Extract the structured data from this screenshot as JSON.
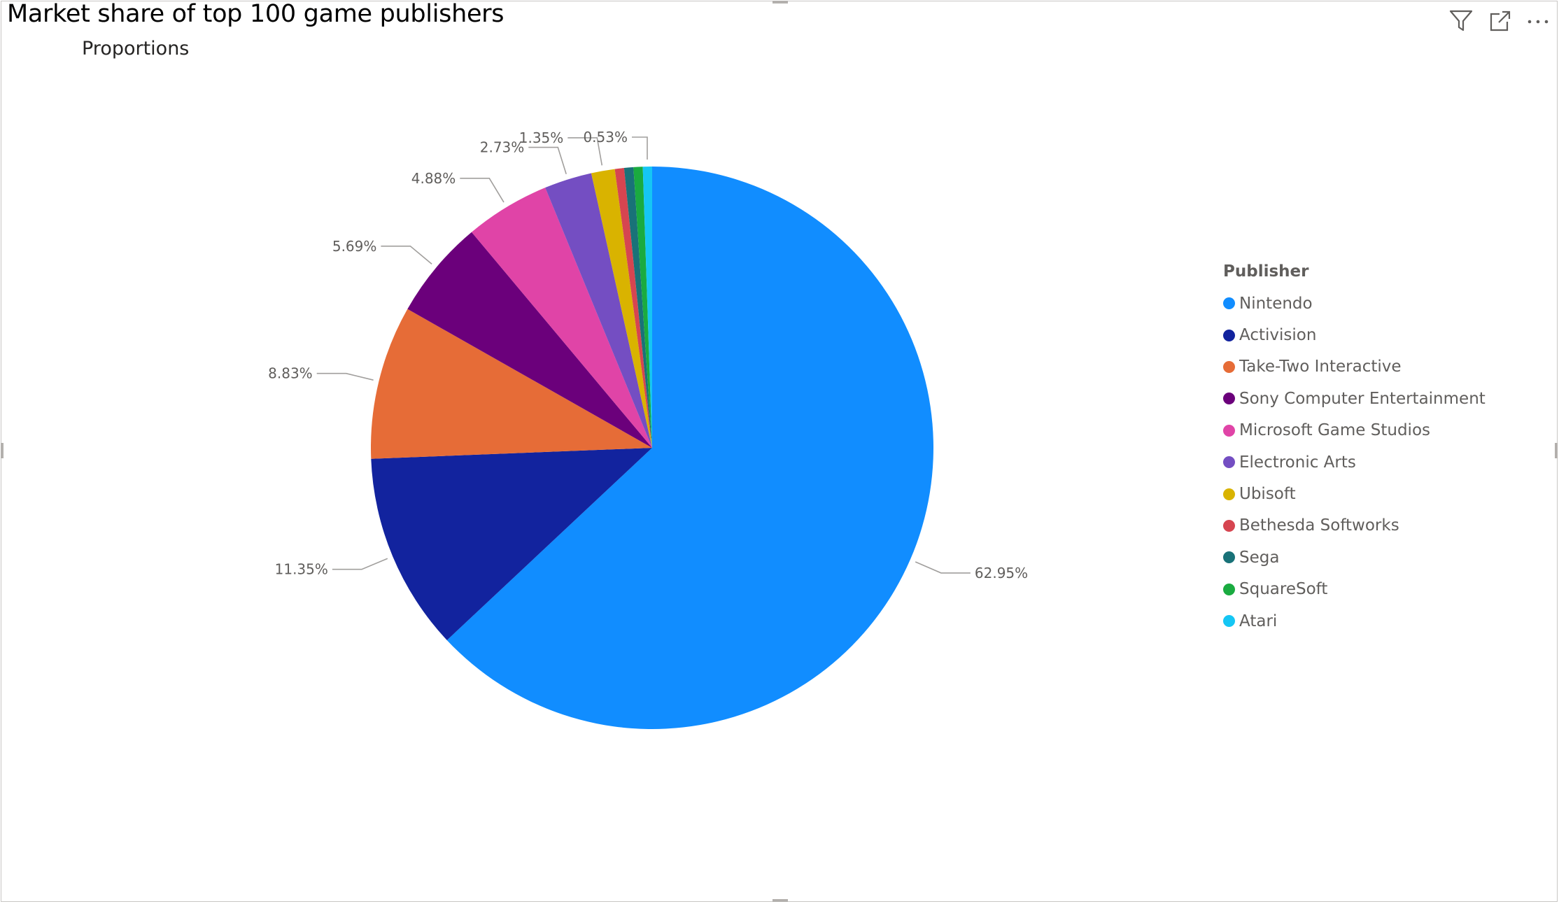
{
  "visual": {
    "title": "Market share of top 100 game publishers",
    "subtitle": "Proportions"
  },
  "toolbar": {
    "filter_icon": "filter-icon",
    "focus_icon": "focus-mode-icon",
    "more_icon": "more-options-icon"
  },
  "chart_data": {
    "type": "pie",
    "legend_title": "Publisher",
    "legend_position": "right",
    "categories": [
      "Nintendo",
      "Activision",
      "Take-Two Interactive",
      "Sony Computer Entertainment",
      "Microsoft Game Studios",
      "Electronic Arts",
      "Ubisoft",
      "Bethesda Softworks",
      "Sega",
      "SquareSoft",
      "Atari"
    ],
    "values": [
      62.95,
      11.35,
      8.83,
      5.69,
      4.88,
      2.73,
      1.35,
      0.53,
      0.53,
      0.53,
      0.53
    ],
    "data_labels": [
      "62.95%",
      "11.35%",
      "8.83%",
      "5.69%",
      "4.88%",
      "2.73%",
      "1.35%",
      "",
      "",
      "",
      "0.53%"
    ],
    "colors": [
      "#118DFF",
      "#12239E",
      "#E66C37",
      "#6B007B",
      "#E044A7",
      "#744EC2",
      "#D9B300",
      "#D64550",
      "#197278",
      "#1AAB40",
      "#15C6F4"
    ]
  }
}
